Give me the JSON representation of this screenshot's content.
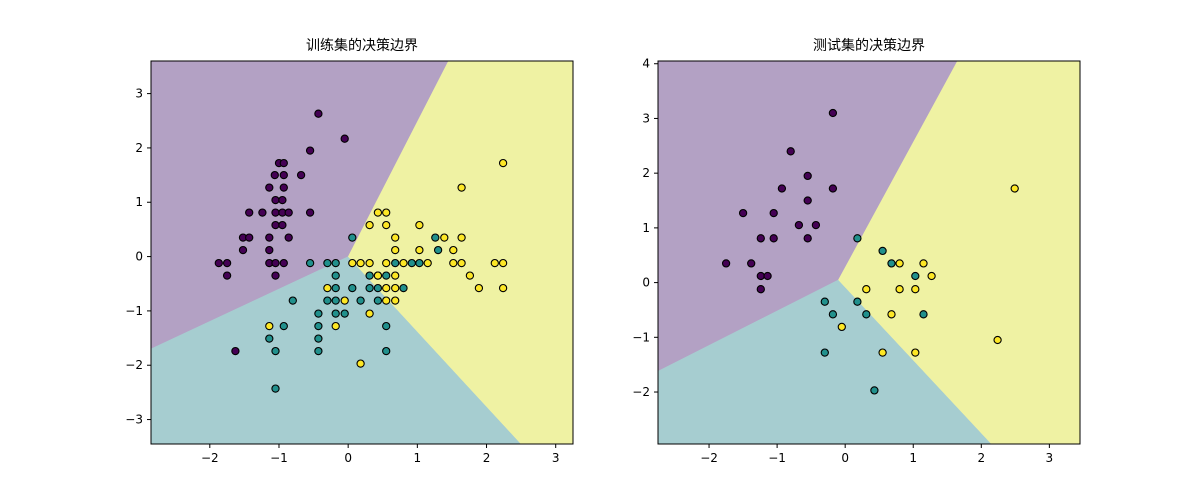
{
  "colors": {
    "purple_region": "#b3a1c4",
    "teal_region": "#a6cdd0",
    "yellow_region": "#eff2a3",
    "class0": "#440154",
    "class1": "#21908c",
    "class2": "#fde725",
    "edge": "#000000"
  },
  "chart_data": [
    {
      "type": "scatter",
      "title": "训练集的决策边界",
      "xlim": [
        -2.85,
        3.25
      ],
      "ylim": [
        -3.45,
        3.6
      ],
      "xticks": [
        -2,
        -1,
        0,
        1,
        2,
        3
      ],
      "yticks": [
        -3,
        -2,
        -1,
        0,
        1,
        2,
        3
      ],
      "grid": false,
      "regions": [
        {
          "class": 0,
          "polygon": [
            [
              -2.85,
              -1.7
            ],
            [
              0,
              0
            ],
            [
              1.45,
              3.6
            ],
            [
              -2.85,
              3.6
            ]
          ]
        },
        {
          "class": 1,
          "polygon": [
            [
              -2.85,
              -3.45
            ],
            [
              -2.85,
              -1.7
            ],
            [
              0,
              0
            ],
            [
              2.5,
              -3.45
            ]
          ]
        },
        {
          "class": 2,
          "polygon": [
            [
              0,
              0
            ],
            [
              1.45,
              3.6
            ],
            [
              3.25,
              3.6
            ],
            [
              3.25,
              -3.45
            ],
            [
              2.5,
              -3.45
            ]
          ]
        }
      ],
      "series": [
        {
          "class": 0,
          "points": [
            [
              -0.43,
              2.63
            ],
            [
              -0.05,
              2.17
            ],
            [
              -0.55,
              1.95
            ],
            [
              -1.0,
              1.72
            ],
            [
              -0.93,
              1.72
            ],
            [
              -1.06,
              1.5
            ],
            [
              -0.93,
              1.5
            ],
            [
              -0.68,
              1.5
            ],
            [
              -1.14,
              1.27
            ],
            [
              -0.93,
              1.27
            ],
            [
              -1.05,
              1.04
            ],
            [
              -0.95,
              1.04
            ],
            [
              -1.05,
              0.81
            ],
            [
              -1.43,
              0.81
            ],
            [
              -1.24,
              0.81
            ],
            [
              -0.95,
              0.81
            ],
            [
              -0.86,
              0.81
            ],
            [
              -0.55,
              0.81
            ],
            [
              -1.05,
              0.58
            ],
            [
              -0.95,
              0.58
            ],
            [
              -1.52,
              0.35
            ],
            [
              -1.43,
              0.35
            ],
            [
              -1.14,
              0.35
            ],
            [
              -0.86,
              0.35
            ],
            [
              -1.52,
              0.12
            ],
            [
              -1.14,
              0.12
            ],
            [
              -1.87,
              -0.12
            ],
            [
              -1.75,
              -0.12
            ],
            [
              -1.14,
              -0.12
            ],
            [
              -1.05,
              -0.12
            ],
            [
              -0.93,
              -0.12
            ],
            [
              -1.75,
              -0.35
            ],
            [
              -1.05,
              -0.35
            ],
            [
              -1.63,
              -1.74
            ]
          ]
        },
        {
          "class": 1,
          "points": [
            [
              0.06,
              0.35
            ],
            [
              -0.55,
              -0.12
            ],
            [
              -0.3,
              -0.12
            ],
            [
              -0.18,
              -0.12
            ],
            [
              0.31,
              -0.35
            ],
            [
              0.43,
              -0.35
            ],
            [
              0.55,
              -0.35
            ],
            [
              -0.18,
              -0.35
            ],
            [
              0.68,
              -0.12
            ],
            [
              0.92,
              -0.12
            ],
            [
              1.03,
              -0.12
            ],
            [
              1.3,
              0.12
            ],
            [
              1.26,
              0.35
            ],
            [
              -0.18,
              -0.58
            ],
            [
              0.06,
              -0.58
            ],
            [
              0.31,
              -0.58
            ],
            [
              0.43,
              -0.58
            ],
            [
              0.8,
              -0.58
            ],
            [
              -0.8,
              -0.81
            ],
            [
              -0.3,
              -0.81
            ],
            [
              -0.18,
              -0.81
            ],
            [
              0.18,
              -0.81
            ],
            [
              0.43,
              -0.81
            ],
            [
              -0.43,
              -1.05
            ],
            [
              -0.18,
              -1.05
            ],
            [
              -0.05,
              -1.05
            ],
            [
              -0.93,
              -1.28
            ],
            [
              -0.43,
              -1.28
            ],
            [
              0.55,
              -1.28
            ],
            [
              -1.14,
              -1.51
            ],
            [
              -0.43,
              -1.51
            ],
            [
              -1.05,
              -1.74
            ],
            [
              -0.43,
              -1.74
            ],
            [
              0.55,
              -1.74
            ],
            [
              -1.05,
              -2.43
            ]
          ]
        },
        {
          "class": 2,
          "points": [
            [
              2.24,
              1.72
            ],
            [
              1.64,
              1.27
            ],
            [
              0.43,
              0.81
            ],
            [
              0.55,
              0.81
            ],
            [
              0.31,
              0.58
            ],
            [
              0.55,
              0.58
            ],
            [
              1.03,
              0.58
            ],
            [
              0.68,
              0.35
            ],
            [
              1.39,
              0.35
            ],
            [
              1.64,
              0.35
            ],
            [
              0.68,
              0.12
            ],
            [
              1.03,
              0.12
            ],
            [
              1.52,
              0.12
            ],
            [
              0.06,
              -0.12
            ],
            [
              0.18,
              -0.12
            ],
            [
              0.31,
              -0.12
            ],
            [
              0.55,
              -0.12
            ],
            [
              0.8,
              -0.12
            ],
            [
              1.15,
              -0.12
            ],
            [
              1.52,
              -0.12
            ],
            [
              1.64,
              -0.12
            ],
            [
              2.12,
              -0.12
            ],
            [
              2.24,
              -0.12
            ],
            [
              0.43,
              -0.35
            ],
            [
              0.68,
              -0.35
            ],
            [
              1.76,
              -0.35
            ],
            [
              -0.3,
              -0.58
            ],
            [
              0.55,
              -0.58
            ],
            [
              0.68,
              -0.58
            ],
            [
              1.89,
              -0.58
            ],
            [
              2.24,
              -0.58
            ],
            [
              -0.05,
              -0.81
            ],
            [
              0.55,
              -0.81
            ],
            [
              0.68,
              -0.81
            ],
            [
              0.31,
              -1.05
            ],
            [
              -1.14,
              -1.28
            ],
            [
              -0.18,
              -1.28
            ],
            [
              0.18,
              -1.97
            ]
          ]
        }
      ]
    },
    {
      "type": "scatter",
      "title": "测试集的决策边界",
      "xlim": [
        -2.75,
        3.45
      ],
      "ylim": [
        -2.95,
        4.05
      ],
      "xticks": [
        -2,
        -1,
        0,
        1,
        2,
        3
      ],
      "yticks": [
        -2,
        -1,
        0,
        1,
        2,
        3,
        4
      ],
      "grid": false,
      "regions": [
        {
          "class": 0,
          "polygon": [
            [
              -2.75,
              -1.62
            ],
            [
              -0.1,
              0.05
            ],
            [
              1.65,
              4.05
            ],
            [
              -2.75,
              4.05
            ]
          ]
        },
        {
          "class": 1,
          "polygon": [
            [
              -2.75,
              -2.95
            ],
            [
              -2.75,
              -1.62
            ],
            [
              -0.1,
              0.05
            ],
            [
              2.15,
              -2.95
            ]
          ]
        },
        {
          "class": 2,
          "polygon": [
            [
              -0.1,
              0.05
            ],
            [
              1.65,
              4.05
            ],
            [
              3.45,
              4.05
            ],
            [
              3.45,
              -2.95
            ],
            [
              2.15,
              -2.95
            ]
          ]
        }
      ],
      "series": [
        {
          "class": 0,
          "points": [
            [
              -0.18,
              3.1
            ],
            [
              -0.8,
              2.4
            ],
            [
              -0.55,
              1.95
            ],
            [
              -0.93,
              1.72
            ],
            [
              -0.18,
              1.72
            ],
            [
              -0.55,
              1.5
            ],
            [
              -1.5,
              1.27
            ],
            [
              -1.05,
              1.27
            ],
            [
              -0.68,
              1.05
            ],
            [
              -0.43,
              1.05
            ],
            [
              -1.24,
              0.81
            ],
            [
              -1.05,
              0.81
            ],
            [
              -0.55,
              0.81
            ],
            [
              -1.75,
              0.35
            ],
            [
              -1.38,
              0.35
            ],
            [
              -1.24,
              0.12
            ],
            [
              -1.14,
              0.12
            ],
            [
              -1.24,
              -0.12
            ]
          ]
        },
        {
          "class": 1,
          "points": [
            [
              0.18,
              0.81
            ],
            [
              0.55,
              0.58
            ],
            [
              0.68,
              0.35
            ],
            [
              1.03,
              0.12
            ],
            [
              -0.3,
              -0.35
            ],
            [
              0.18,
              -0.35
            ],
            [
              -0.18,
              -0.58
            ],
            [
              0.31,
              -0.58
            ],
            [
              1.15,
              -0.58
            ],
            [
              -0.3,
              -1.28
            ],
            [
              0.43,
              -1.97
            ]
          ]
        },
        {
          "class": 2,
          "points": [
            [
              2.49,
              1.72
            ],
            [
              0.8,
              0.35
            ],
            [
              1.15,
              0.35
            ],
            [
              1.27,
              0.12
            ],
            [
              0.31,
              -0.12
            ],
            [
              0.8,
              -0.12
            ],
            [
              1.03,
              -0.12
            ],
            [
              0.68,
              -0.58
            ],
            [
              -0.05,
              -0.81
            ],
            [
              2.24,
              -1.05
            ],
            [
              0.55,
              -1.28
            ],
            [
              1.03,
              -1.28
            ]
          ]
        }
      ]
    }
  ]
}
